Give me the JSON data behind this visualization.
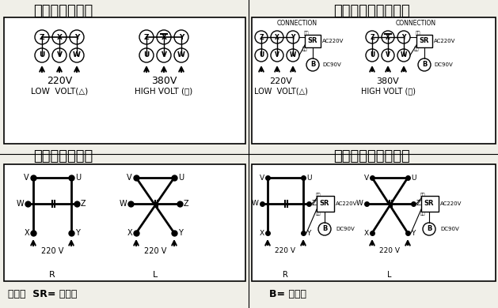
{
  "bg_color": "#f0efe8",
  "text_color": "#111111",
  "section_titles": {
    "top_left": "三相電機接線圖",
    "top_right": "三相剛車電機接線圖",
    "bot_left": "單相電機接線圖",
    "bot_right": "單相剛車電機接線圖"
  },
  "footer_left": "備注：  SR= 整流器",
  "footer_right": "B= 剛車器",
  "connection": "CONNECTION"
}
